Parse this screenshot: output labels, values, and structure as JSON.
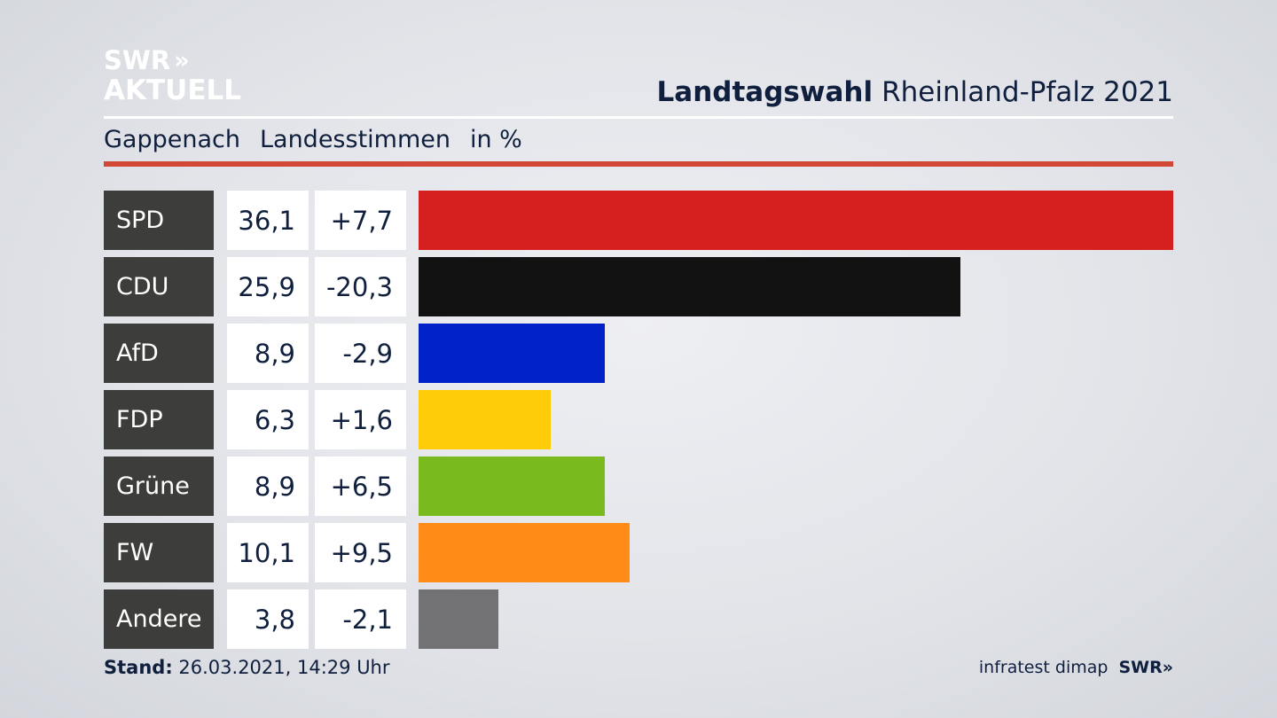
{
  "logo": {
    "line1": "SWR",
    "line2": "AKTUELL",
    "chevrons": "»"
  },
  "header": {
    "title_bold": "Landtagswahl",
    "title_rest": "Rheinland-Pfalz 2021"
  },
  "subheader": {
    "location": "Gappenach",
    "metric": "Landesstimmen",
    "unit": "in %"
  },
  "chart_data": {
    "type": "bar",
    "orientation": "horizontal",
    "categories": [
      "SPD",
      "CDU",
      "AfD",
      "FDP",
      "Grüne",
      "FW",
      "Andere"
    ],
    "values": [
      36.1,
      25.9,
      8.9,
      6.3,
      8.9,
      10.1,
      3.8
    ],
    "value_labels": [
      "36,1",
      "25,9",
      "8,9",
      "6,3",
      "8,9",
      "10,1",
      "3,8"
    ],
    "changes": [
      7.7,
      -20.3,
      -2.9,
      1.6,
      6.5,
      9.5,
      -2.1
    ],
    "change_labels": [
      "+7,7",
      "-20,3",
      "-2,9",
      "+1,6",
      "+6,5",
      "+9,5",
      "-2,1"
    ],
    "colors": [
      "#d62020",
      "#121212",
      "#0021c7",
      "#ffcc0a",
      "#79bb1f",
      "#ff8c17",
      "#727274"
    ],
    "xlim": [
      0,
      36.1
    ],
    "grid": false,
    "legend": "none"
  },
  "footer": {
    "stand_label": "Stand:",
    "stand_value": "26.03.2021, 14:29 Uhr",
    "source": "infratest dimap",
    "brand": "SWR",
    "brand_chevrons": "»"
  }
}
